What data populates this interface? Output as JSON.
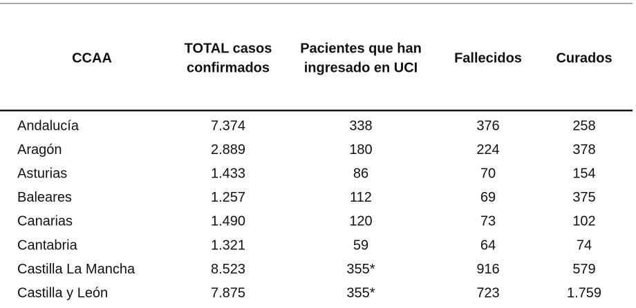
{
  "table": {
    "header": [
      [
        "CCAA"
      ],
      [
        "TOTAL casos",
        "confirmados"
      ],
      [
        "Pacientes que han",
        "ingresado en UCI"
      ],
      [
        "Fallecidos"
      ],
      [
        "Curados"
      ]
    ],
    "rows": [
      [
        "Andalucía",
        "7.374",
        "338",
        "376",
        "258"
      ],
      [
        "Aragón",
        "2.889",
        "180",
        "224",
        "378"
      ],
      [
        "Asturias",
        "1.433",
        "86",
        "70",
        "154"
      ],
      [
        "Baleares",
        "1.257",
        "112",
        "69",
        "375"
      ],
      [
        "Canarias",
        "1.490",
        "120",
        "73",
        "102"
      ],
      [
        "Cantabria",
        "1.321",
        "59",
        "64",
        "74"
      ],
      [
        "Castilla La Mancha",
        "8.523",
        "355*",
        "916",
        "579"
      ],
      [
        "Castilla y León",
        "7.875",
        "355*",
        "723",
        "1.759"
      ]
    ]
  }
}
